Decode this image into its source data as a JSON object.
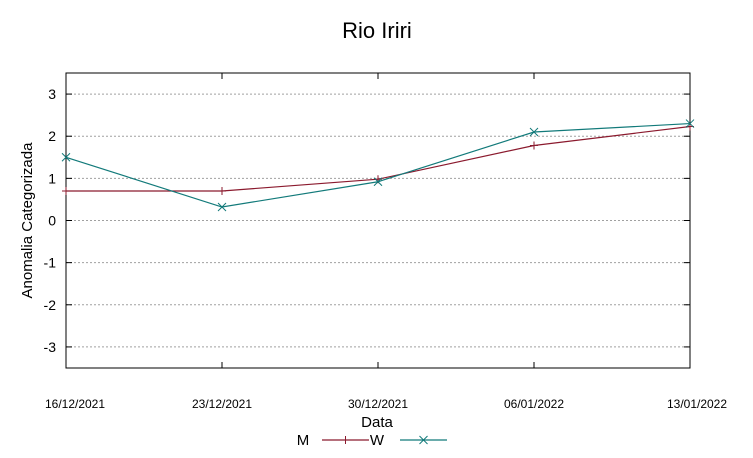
{
  "chart_data": {
    "type": "line",
    "title": "Rio Iriri",
    "xlabel": "Data",
    "ylabel": "Anomalia Categorizada",
    "x": [
      "16/12/2021",
      "23/12/2021",
      "30/12/2021",
      "06/01/2022",
      "13/01/2022"
    ],
    "ylim": [
      -3.5,
      3.5
    ],
    "yticks": [
      "3",
      "2",
      "1",
      "0",
      "-1",
      "-2",
      "-3"
    ],
    "ytick_values": [
      3,
      2,
      1,
      0,
      -1,
      -2,
      -3
    ],
    "grid": true,
    "legend_position": "bottom-center",
    "series": [
      {
        "name": "M",
        "marker": "plus",
        "color": "#8b1a2e",
        "values": [
          0.7,
          0.7,
          0.98,
          1.78,
          2.23
        ]
      },
      {
        "name": "W",
        "marker": "x",
        "color": "#127a7a",
        "values": [
          1.5,
          0.32,
          0.92,
          2.1,
          2.3
        ]
      }
    ]
  }
}
